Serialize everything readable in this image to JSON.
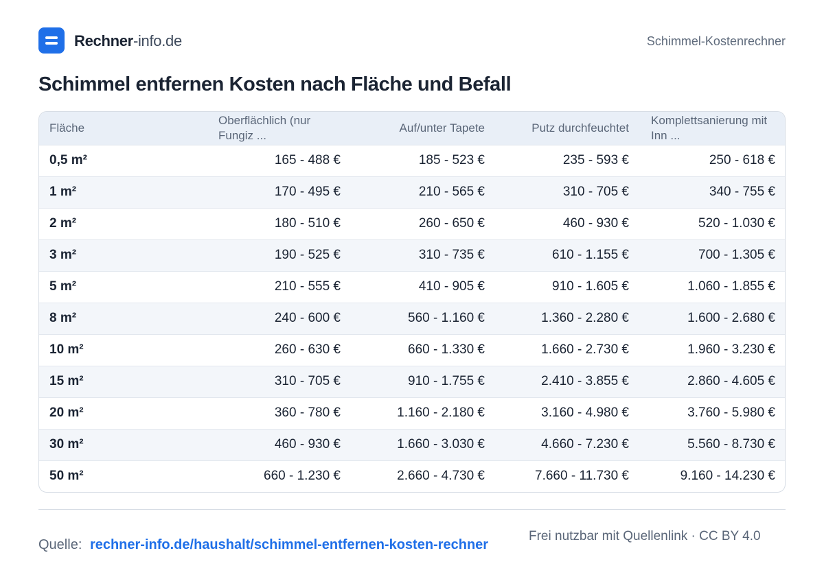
{
  "header": {
    "brand_strong": "Rechner",
    "brand_light": "-info.de",
    "calculator_name": "Schimmel-Kostenrechner"
  },
  "page_title": "Schimmel entfernen Kosten nach Fläche und Befall",
  "table": {
    "columns": [
      "Fläche",
      "Oberflächlich (nur Fungiz ...",
      "Auf/unter Tapete",
      "Putz durchfeuchtet",
      "Komplettsanierung mit Inn ..."
    ],
    "rows": [
      [
        "0,5 m²",
        "165 - 488 €",
        "185 - 523 €",
        "235 - 593 €",
        "250 - 618 €"
      ],
      [
        "1 m²",
        "170 - 495 €",
        "210 - 565 €",
        "310 - 705 €",
        "340 - 755 €"
      ],
      [
        "2 m²",
        "180 - 510 €",
        "260 - 650 €",
        "460 - 930 €",
        "520 - 1.030 €"
      ],
      [
        "3 m²",
        "190 - 525 €",
        "310 - 735 €",
        "610 - 1.155 €",
        "700 - 1.305 €"
      ],
      [
        "5 m²",
        "210 - 555 €",
        "410 - 905 €",
        "910 - 1.605 €",
        "1.060 - 1.855 €"
      ],
      [
        "8 m²",
        "240 - 600 €",
        "560 - 1.160 €",
        "1.360 - 2.280 €",
        "1.600 - 2.680 €"
      ],
      [
        "10 m²",
        "260 - 630 €",
        "660 - 1.330 €",
        "1.660 - 2.730 €",
        "1.960 - 3.230 €"
      ],
      [
        "15 m²",
        "310 - 705 €",
        "910 - 1.755 €",
        "2.410 - 3.855 €",
        "2.860 - 4.605 €"
      ],
      [
        "20 m²",
        "360 - 780 €",
        "1.160 - 2.180 €",
        "3.160 - 4.980 €",
        "3.760 - 5.980 €"
      ],
      [
        "30 m²",
        "460 - 930 €",
        "1.660 - 3.030 €",
        "4.660 - 7.230 €",
        "5.560 - 8.730 €"
      ],
      [
        "50 m²",
        "660 - 1.230 €",
        "2.660 - 4.730 €",
        "7.660 - 11.730 €",
        "9.160 - 14.230 €"
      ]
    ]
  },
  "footer": {
    "source_label": "Quelle:",
    "source_link": "rechner-info.de/haushalt/schimmel-entfernen-kosten-rechner",
    "license_text": "Frei nutzbar mit Quellenlink · CC BY 4.0"
  },
  "colors": {
    "accent": "#1f6fe8",
    "text": "#1b2433",
    "muted": "#5a6678",
    "header_bg": "#e9eff7",
    "stripe_bg": "#f3f6fa"
  },
  "icons": {
    "logo": "menu-lines-icon"
  }
}
